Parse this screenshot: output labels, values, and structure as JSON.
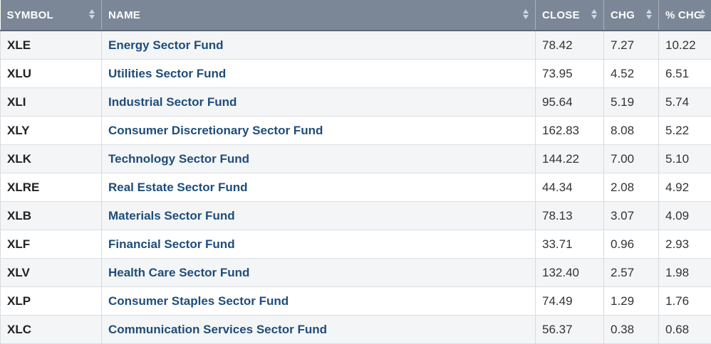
{
  "table": {
    "columns": [
      "SYMBOL",
      "NAME",
      "CLOSE",
      "CHG",
      "% CHG"
    ],
    "rows": [
      {
        "symbol": "XLE",
        "name": "Energy Sector Fund",
        "close": "78.42",
        "chg": "7.27",
        "pct_chg": "10.22"
      },
      {
        "symbol": "XLU",
        "name": "Utilities Sector Fund",
        "close": "73.95",
        "chg": "4.52",
        "pct_chg": "6.51"
      },
      {
        "symbol": "XLI",
        "name": "Industrial Sector Fund",
        "close": "95.64",
        "chg": "5.19",
        "pct_chg": "5.74"
      },
      {
        "symbol": "XLY",
        "name": "Consumer Discretionary Sector Fund",
        "close": "162.83",
        "chg": "8.08",
        "pct_chg": "5.22"
      },
      {
        "symbol": "XLK",
        "name": "Technology Sector Fund",
        "close": "144.22",
        "chg": "7.00",
        "pct_chg": "5.10"
      },
      {
        "symbol": "XLRE",
        "name": "Real Estate Sector Fund",
        "close": "44.34",
        "chg": "2.08",
        "pct_chg": "4.92"
      },
      {
        "symbol": "XLB",
        "name": "Materials Sector Fund",
        "close": "78.13",
        "chg": "3.07",
        "pct_chg": "4.09"
      },
      {
        "symbol": "XLF",
        "name": "Financial Sector Fund",
        "close": "33.71",
        "chg": "0.96",
        "pct_chg": "2.93"
      },
      {
        "symbol": "XLV",
        "name": "Health Care Sector Fund",
        "close": "132.40",
        "chg": "2.57",
        "pct_chg": "1.98"
      },
      {
        "symbol": "XLP",
        "name": "Consumer Staples Sector Fund",
        "close": "74.49",
        "chg": "1.29",
        "pct_chg": "1.76"
      },
      {
        "symbol": "XLC",
        "name": "Communication Services Sector Fund",
        "close": "56.37",
        "chg": "0.38",
        "pct_chg": "0.68"
      }
    ]
  },
  "icons": {
    "sort": "sort-arrows-icon"
  },
  "colors": {
    "header_bg": "#7b8796",
    "link": "#1e4d7b",
    "row_alt": "#f4f5f6"
  }
}
